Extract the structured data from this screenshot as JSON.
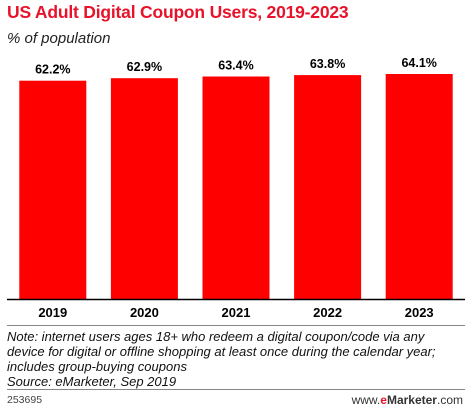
{
  "chart_data": {
    "type": "bar",
    "title": "US Adult Digital Coupon Users, 2019-2023",
    "subtitle": "% of population",
    "categories": [
      "2019",
      "2020",
      "2021",
      "2022",
      "2023"
    ],
    "values": [
      62.2,
      62.9,
      63.4,
      63.8,
      64.1
    ],
    "data_labels": [
      "62.2%",
      "62.9%",
      "63.4%",
      "63.8%",
      "64.1%"
    ],
    "ylim": [
      0,
      64.1
    ],
    "grid": false,
    "bar_color": "#ff0000"
  },
  "note_lines": [
    "Note: internet users ages 18+ who redeem a digital coupon/code via any",
    "device for digital or offline shopping at least once during the calendar year;",
    "includes group-buying coupons",
    "Source: eMarketer, Sep 2019"
  ],
  "footer": {
    "chart_id": "253695",
    "brand_prefix": "www.",
    "brand_e": "e",
    "brand_name": "Marketer",
    "brand_suffix": ".com"
  }
}
